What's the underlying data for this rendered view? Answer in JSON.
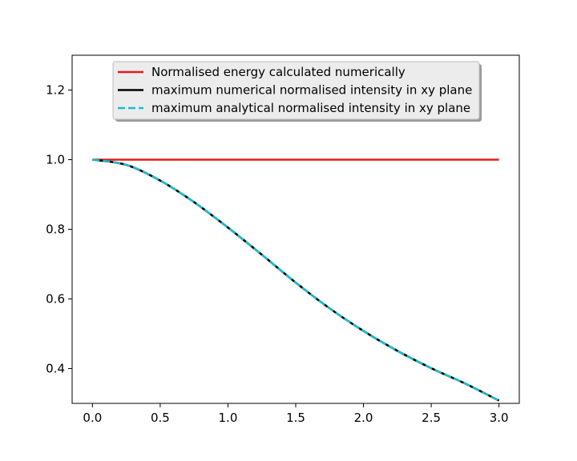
{
  "chart_data": {
    "type": "line",
    "title": "",
    "xlabel": "",
    "ylabel": "",
    "xlim": [
      -0.15,
      3.15
    ],
    "ylim": [
      0.3,
      1.3
    ],
    "xticks": [
      0.0,
      0.5,
      1.0,
      1.5,
      2.0,
      2.5,
      3.0
    ],
    "xtick_labels": [
      "0.0",
      "0.5",
      "1.0",
      "1.5",
      "2.0",
      "2.5",
      "3.0"
    ],
    "yticks": [
      0.4,
      0.6,
      0.8,
      1.0,
      1.2
    ],
    "ytick_labels": [
      "0.4",
      "0.6",
      "0.8",
      "1.0",
      "1.2"
    ],
    "grid": false,
    "legend_position": "top-center",
    "x": [
      0.0,
      0.25,
      0.5,
      0.75,
      1.0,
      1.25,
      1.5,
      1.75,
      2.0,
      2.25,
      2.5,
      2.75,
      3.0
    ],
    "series": [
      {
        "name": "Normalised energy calculated numerically",
        "color": "#e31a1c",
        "style": "solid",
        "values": [
          1.0,
          1.0,
          1.0,
          1.0,
          1.0,
          1.0,
          1.0,
          1.0,
          1.0,
          1.0,
          1.0,
          1.0,
          1.0
        ]
      },
      {
        "name": "maximum numerical normalised intensity in xy plane",
        "color": "#000000",
        "style": "solid",
        "values": [
          1.0,
          0.985,
          0.94,
          0.878,
          0.805,
          0.727,
          0.647,
          0.573,
          0.508,
          0.451,
          0.401,
          0.357,
          0.308
        ]
      },
      {
        "name": "maximum analytical normalised intensity in xy plane",
        "color": "#17becf",
        "style": "dashed",
        "values": [
          1.0,
          0.985,
          0.94,
          0.878,
          0.805,
          0.727,
          0.647,
          0.573,
          0.508,
          0.451,
          0.401,
          0.357,
          0.308
        ]
      }
    ]
  }
}
